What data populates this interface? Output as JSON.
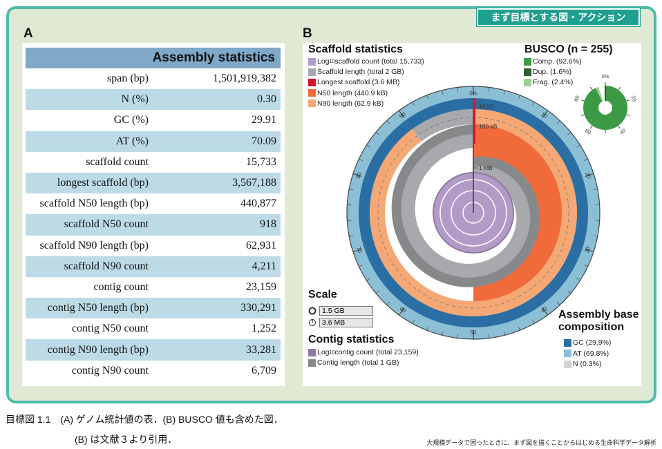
{
  "tag": "まず目標とする図・アクション",
  "panel_a": "A",
  "panel_b": "B",
  "table": {
    "header": "Assembly statistics",
    "rows": [
      [
        "span (bp)",
        "1,501,919,382"
      ],
      [
        "N (%)",
        "0.30"
      ],
      [
        "GC (%)",
        "29.91"
      ],
      [
        "AT (%)",
        "70.09"
      ],
      [
        "scaffold count",
        "15,733"
      ],
      [
        "longest scaffold (bp)",
        "3,567,188"
      ],
      [
        "scaffold N50 length (bp)",
        "440,877"
      ],
      [
        "scaffold N50 count",
        "918"
      ],
      [
        "scaffold N90 length (bp)",
        "62,931"
      ],
      [
        "scaffold N90 count",
        "4,211"
      ],
      [
        "contig count",
        "23,159"
      ],
      [
        "contig N50 length (bp)",
        "330,291"
      ],
      [
        "contig N50 count",
        "1,252"
      ],
      [
        "contig N90 length (bp)",
        "33,281"
      ],
      [
        "contig N90 count",
        "6,709"
      ]
    ]
  },
  "snail": {
    "scaffold_title": "Scaffold statistics",
    "scaffold_legend": [
      {
        "pre": "Log",
        "sub": "10",
        "post": " scaffold count (total 15,733)",
        "color": "#b39bc8"
      },
      {
        "pre": "Scaffold length (total 2 GB)",
        "color": "#a7a9ac"
      },
      {
        "pre": "Longest scaffold (3.6 MB)",
        "color": "#d7152f"
      },
      {
        "pre": "N50 length (440.9 kB)",
        "color": "#f06a3a"
      },
      {
        "pre": "N90 length (62.9 kB)",
        "color": "#f5a874"
      }
    ],
    "busco_title": "BUSCO  (n = 255)",
    "busco_legend": [
      {
        "label": "Comp. (92.6%)",
        "color": "#3d9a44"
      },
      {
        "label": "Dup. (1.6%)",
        "color": "#2d5e2e"
      },
      {
        "label": "Frag. (2.4%)",
        "color": "#9ad38f"
      }
    ],
    "busco_values": {
      "complete": 92.6,
      "duplicated": 1.6,
      "fragmented": 2.4
    },
    "busco_ticks": [
      "0%",
      "20",
      "40",
      "60",
      "80"
    ],
    "ring_ticks": [
      "0%",
      "10",
      "20",
      "30",
      "40",
      "50",
      "60",
      "70",
      "80",
      "90"
    ],
    "radial_labels": [
      "10 kB",
      "100 kB",
      "1 MB"
    ],
    "scale_title": "Scale",
    "scale_values": [
      "1.5 GB",
      "3.6 MB"
    ],
    "contig_title": "Contig statistics",
    "contig_legend": [
      {
        "pre": "Log",
        "sub": "10",
        "post": " contig count (total 23,159)",
        "color": "#8e7aa0"
      },
      {
        "pre": "Contig length (total 1 GB)",
        "color": "#87888a"
      }
    ],
    "base_title_1": "Assembly base",
    "base_title_2": "composition",
    "base_legend": [
      {
        "label": "GC (29.9%)",
        "color": "#2a6ea3"
      },
      {
        "label": "AT (69.8%)",
        "color": "#8bbfd6"
      },
      {
        "label": "N (0.3%)",
        "color": "#d3d3d3"
      }
    ],
    "n50_percent": 50,
    "n90_percent": 90
  },
  "caption": {
    "line1": "目標図 1.1　(A) ゲノム統計値の表．(B) BUSCO 値も含めた図．",
    "line2": "(B) は文献３より引用．",
    "footer": "大規模データで困ったときに、まず図を描くことからはじめる生命科学データ解析"
  }
}
